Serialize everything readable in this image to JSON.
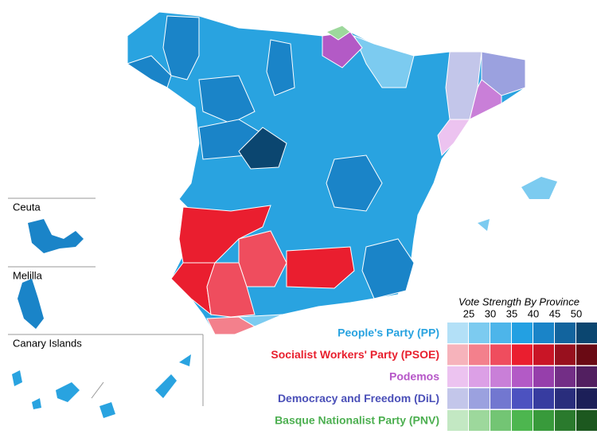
{
  "insets": [
    {
      "label": "Ceuta"
    },
    {
      "label": "Melilla"
    },
    {
      "label": "Canary Islands"
    }
  ],
  "legend": {
    "title": "Vote Strength By Province",
    "ticks": [
      25,
      30,
      35,
      40,
      45,
      50
    ],
    "parties": [
      {
        "name": "People's Party (PP)",
        "color": "#29a3e0",
        "swatches": [
          "#b3e0f7",
          "#7ccbf0",
          "#4db5ea",
          "#23a0e2",
          "#1a84c8",
          "#12649e",
          "#0b4670"
        ]
      },
      {
        "name": "Socialist Workers' Party (PSOE)",
        "color": "#e8202e",
        "swatches": [
          "#f6b3bb",
          "#f3808c",
          "#ef4d5e",
          "#ea1e2f",
          "#c91526",
          "#98101e",
          "#6a0a14"
        ]
      },
      {
        "name": "Podemos",
        "color": "#b657c8",
        "swatches": [
          "#ecc3f0",
          "#dca0e6",
          "#c97fd8",
          "#b35ac6",
          "#963fab",
          "#732e86",
          "#521f60"
        ]
      },
      {
        "name": "Democracy and Freedom (DiL)",
        "color": "#4a4fb8",
        "swatches": [
          "#c3c6ea",
          "#9ba1df",
          "#7277d0",
          "#4c52c0",
          "#373ca0",
          "#292d7c",
          "#1c1f58"
        ]
      },
      {
        "name": "Basque Nationalist Party (PNV)",
        "color": "#4caf50",
        "swatches": [
          "#c3e8c3",
          "#9dd89c",
          "#73c574",
          "#4db64f",
          "#389a3b",
          "#2a7a2d",
          "#1c581f"
        ]
      }
    ]
  }
}
